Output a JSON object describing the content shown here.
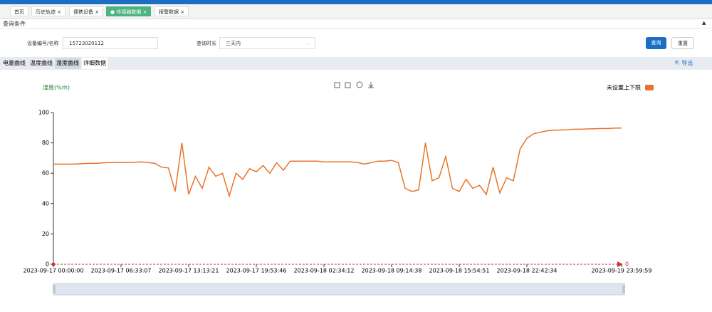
{
  "tabs": [
    "首页",
    "历史轨迹",
    "便携设备",
    "传感器数据",
    "报警数据"
  ],
  "query_panel": {
    "title": "查询条件",
    "device_label": "设备编号/名称",
    "device_value": "15723020112",
    "duration_label": "查询时长",
    "duration_value": "三天内",
    "search_button": "查询",
    "reset_button": "重置"
  },
  "sub_tabs": [
    "电量曲线",
    "温度曲线",
    "湿度曲线",
    "详细数据"
  ],
  "export": "导出",
  "chart_data": {
    "type": "line",
    "y_axis_label": "湿度(%rh)",
    "categories": [
      "2023-09-17 00:00:00",
      null,
      null,
      null,
      null,
      null,
      null,
      null,
      null,
      null,
      "2023-09-17 06:33:07",
      null,
      null,
      null,
      null,
      null,
      null,
      null,
      null,
      null,
      "2023-09-17 13:13:21",
      null,
      null,
      null,
      null,
      null,
      null,
      null,
      null,
      null,
      "2023-09-17 19:53:46",
      null,
      null,
      null,
      null,
      null,
      null,
      null,
      null,
      null,
      "2023-09-18 02:34:12",
      null,
      null,
      null,
      null,
      null,
      null,
      null,
      null,
      null,
      "2023-09-18 09:14:38",
      null,
      null,
      null,
      null,
      null,
      null,
      null,
      null,
      null,
      "2023-09-18 15:54:51",
      null,
      null,
      null,
      null,
      null,
      null,
      null,
      null,
      null,
      "2023-09-18 22:42:34",
      null,
      null,
      null,
      null,
      null,
      null,
      null,
      null,
      null,
      null,
      null,
      null,
      null,
      "2023-09-19 23:59:59"
    ],
    "series": [
      {
        "name": "未设置上下限",
        "color": "#e8742a",
        "values": [
          66,
          66,
          66,
          66,
          66.2,
          66.5,
          66.5,
          66.7,
          67,
          67,
          67,
          67,
          67.2,
          67.5,
          67,
          66.5,
          64,
          63.5,
          48,
          80,
          46,
          58,
          50,
          64,
          58,
          60,
          45,
          60,
          56,
          63,
          61,
          65,
          60,
          67,
          62,
          68,
          68,
          68,
          68,
          68,
          67.5,
          67.5,
          67.5,
          67.5,
          67.5,
          67,
          66,
          67,
          68,
          68,
          68.5,
          67,
          50,
          48,
          49,
          80,
          55,
          57,
          71,
          50,
          48,
          56,
          50,
          52,
          46,
          64,
          47,
          57,
          55,
          76,
          83,
          86,
          87,
          88,
          88.3,
          88.5,
          88.7,
          89,
          89,
          89.2,
          89.3,
          89.5,
          89.5,
          89.7,
          89.8
        ]
      }
    ],
    "ylim": [
      0,
      100
    ],
    "yticks": [
      0,
      20,
      40,
      60,
      80,
      100
    ],
    "mark_line_value": 0
  }
}
